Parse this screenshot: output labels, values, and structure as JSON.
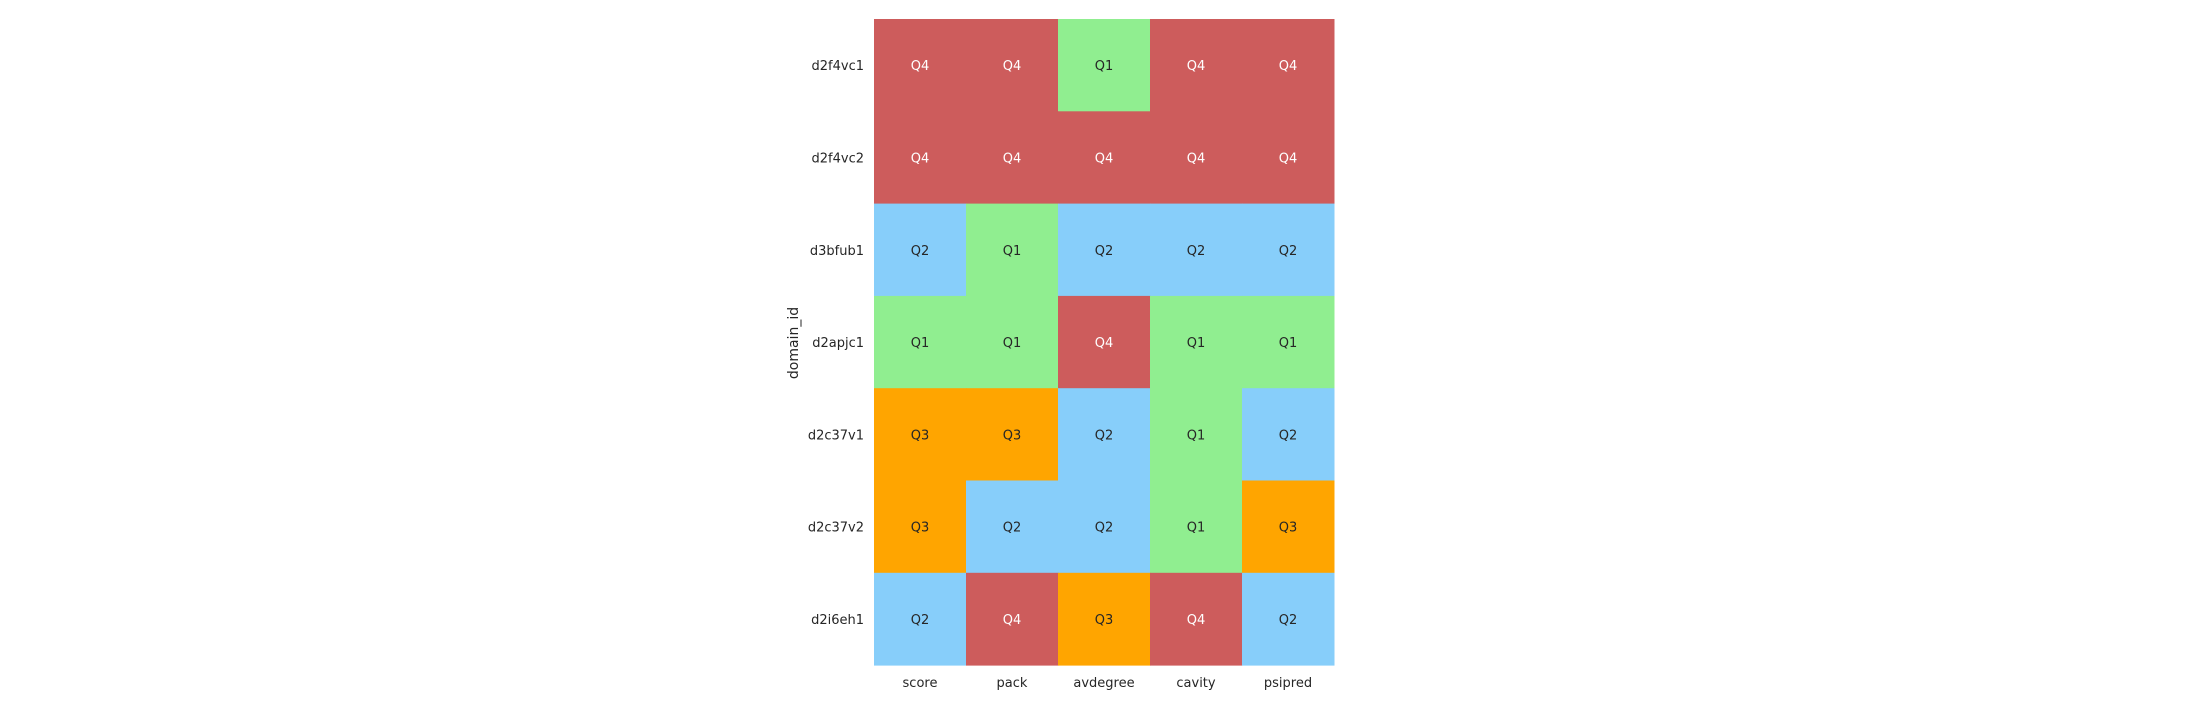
{
  "chart_data": {
    "type": "heatmap",
    "title": "",
    "xlabel": "",
    "ylabel": "domain_id",
    "columns": [
      "score",
      "pack",
      "avdegree",
      "cavity",
      "psipred"
    ],
    "rows": [
      "d2f4vc1",
      "d2f4vc2",
      "d3bfub1",
      "d2apjc1",
      "d2c37v1",
      "d2c37v2",
      "d2i6eh1"
    ],
    "values": [
      [
        "Q4",
        "Q4",
        "Q1",
        "Q4",
        "Q4"
      ],
      [
        "Q4",
        "Q4",
        "Q4",
        "Q4",
        "Q4"
      ],
      [
        "Q2",
        "Q1",
        "Q2",
        "Q2",
        "Q2"
      ],
      [
        "Q1",
        "Q1",
        "Q4",
        "Q1",
        "Q1"
      ],
      [
        "Q3",
        "Q3",
        "Q2",
        "Q1",
        "Q2"
      ],
      [
        "Q3",
        "Q2",
        "Q2",
        "Q1",
        "Q3"
      ],
      [
        "Q2",
        "Q4",
        "Q3",
        "Q4",
        "Q2"
      ]
    ],
    "category_colors": {
      "Q1": "#90ee90",
      "Q2": "#87cefa",
      "Q3": "#ffa500",
      "Q4": "#cd5c5c"
    },
    "label_colors": {
      "Q1": "#262626",
      "Q2": "#262626",
      "Q3": "#262626",
      "Q4": "#ffffff"
    },
    "grid": false,
    "legend": "none"
  }
}
